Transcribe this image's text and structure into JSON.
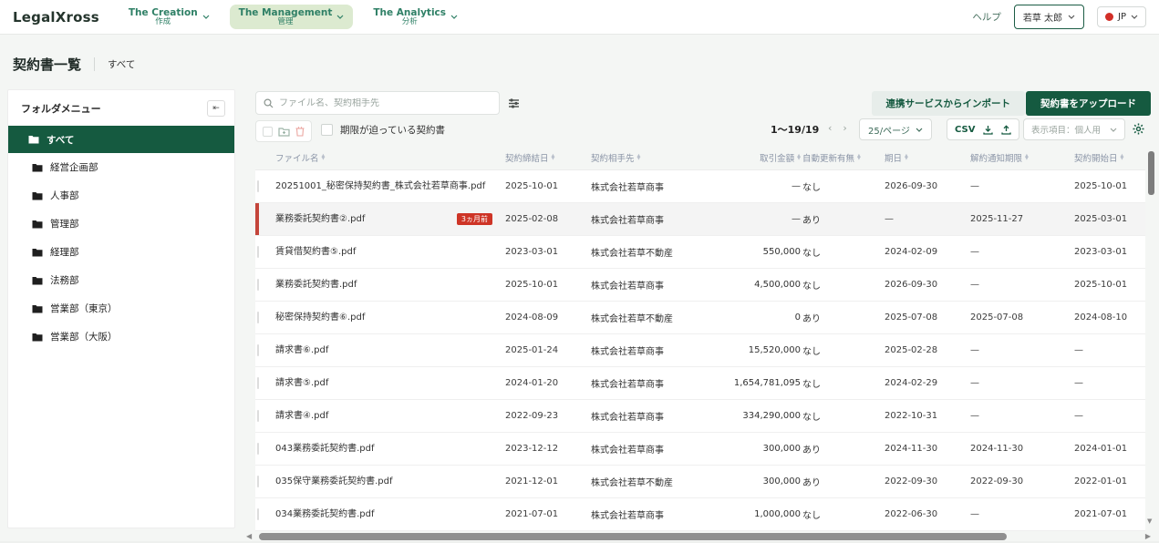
{
  "header": {
    "logo": "LegalXross",
    "nav": [
      {
        "en": "The Creation",
        "ja": "作成",
        "active": false
      },
      {
        "en": "The Management",
        "ja": "管理",
        "active": true
      },
      {
        "en": "The Analytics",
        "ja": "分析",
        "active": false
      }
    ],
    "help": "ヘルプ",
    "user_name": "若草 太郎",
    "lang": "JP"
  },
  "page": {
    "title": "契約書一覧",
    "subtitle": "すべて"
  },
  "sidebar": {
    "title": "フォルダメニュー",
    "items": [
      {
        "label": "すべて",
        "selected": true
      },
      {
        "label": "経営企画部",
        "selected": false
      },
      {
        "label": "人事部",
        "selected": false
      },
      {
        "label": "管理部",
        "selected": false
      },
      {
        "label": "経理部",
        "selected": false
      },
      {
        "label": "法務部",
        "selected": false
      },
      {
        "label": "営業部（東京）",
        "selected": false
      },
      {
        "label": "営業部（大阪）",
        "selected": false
      }
    ]
  },
  "toolbar": {
    "search_placeholder": "ファイル名、契約相手先",
    "deadline_filter_label": "期限が迫っている契約書",
    "import_label": "連携サービスからインポート",
    "upload_label": "契約書をアップロード",
    "range_text": "1〜19/19",
    "per_page": "25/ページ",
    "csv_label": "CSV",
    "display_select": "表示項目：個人用"
  },
  "table": {
    "headers": [
      "ファイル名",
      "契約締結日",
      "契約相手先",
      "取引金額",
      "自動更新有無",
      "期日",
      "解約通知期限",
      "契約開始日"
    ],
    "rows": [
      {
        "file": "20251001_秘密保持契約書_株式会社若草商事.pdf",
        "badge": "",
        "concluded": "2025-10-01",
        "partner": "株式会社若草商事",
        "amount": "—",
        "auto": "なし",
        "due": "2026-09-30",
        "notice": "—",
        "start": "2025-10-01",
        "highlight": false
      },
      {
        "file": "業務委託契約書②.pdf",
        "badge": "3ヵ月前",
        "concluded": "2025-02-08",
        "partner": "株式会社若草商事",
        "amount": "—",
        "auto": "あり",
        "due": "—",
        "notice": "2025-11-27",
        "start": "2025-03-01",
        "highlight": true
      },
      {
        "file": "賃貸借契約書⑤.pdf",
        "badge": "",
        "concluded": "2023-03-01",
        "partner": "株式会社若草不動産",
        "amount": "550,000",
        "auto": "なし",
        "due": "2024-02-09",
        "notice": "—",
        "start": "2023-03-01",
        "highlight": false
      },
      {
        "file": "業務委託契約書.pdf",
        "badge": "",
        "concluded": "2025-10-01",
        "partner": "株式会社若草商事",
        "amount": "4,500,000",
        "auto": "なし",
        "due": "2026-09-30",
        "notice": "—",
        "start": "2025-10-01",
        "highlight": false
      },
      {
        "file": "秘密保持契約書⑥.pdf",
        "badge": "",
        "concluded": "2024-08-09",
        "partner": "株式会社若草不動産",
        "amount": "0",
        "auto": "あり",
        "due": "2025-07-08",
        "notice": "2025-07-08",
        "start": "2024-08-10",
        "highlight": false
      },
      {
        "file": "請求書⑥.pdf",
        "badge": "",
        "concluded": "2025-01-24",
        "partner": "株式会社若草商事",
        "amount": "15,520,000",
        "auto": "なし",
        "due": "2025-02-28",
        "notice": "—",
        "start": "—",
        "highlight": false
      },
      {
        "file": "請求書⑤.pdf",
        "badge": "",
        "concluded": "2024-01-20",
        "partner": "株式会社若草商事",
        "amount": "1,654,781,095",
        "auto": "なし",
        "due": "2024-02-29",
        "notice": "—",
        "start": "—",
        "highlight": false
      },
      {
        "file": "請求書④.pdf",
        "badge": "",
        "concluded": "2022-09-23",
        "partner": "株式会社若草商事",
        "amount": "334,290,000",
        "auto": "なし",
        "due": "2022-10-31",
        "notice": "—",
        "start": "—",
        "highlight": false
      },
      {
        "file": "043業務委託契約書.pdf",
        "badge": "",
        "concluded": "2023-12-12",
        "partner": "株式会社若草商事",
        "amount": "300,000",
        "auto": "あり",
        "due": "2024-11-30",
        "notice": "2024-11-30",
        "start": "2024-01-01",
        "highlight": false
      },
      {
        "file": "035保守業務委託契約書.pdf",
        "badge": "",
        "concluded": "2021-12-01",
        "partner": "株式会社若草不動産",
        "amount": "300,000",
        "auto": "あり",
        "due": "2022-09-30",
        "notice": "2022-09-30",
        "start": "2022-01-01",
        "highlight": false
      },
      {
        "file": "034業務委託契約書.pdf",
        "badge": "",
        "concluded": "2021-07-01",
        "partner": "株式会社若草商事",
        "amount": "1,000,000",
        "auto": "なし",
        "due": "2022-06-30",
        "notice": "—",
        "start": "2021-07-01",
        "highlight": false
      }
    ]
  },
  "colors": {
    "brand_dark_green": "#155a40",
    "nav_green": "#2f8066",
    "nav_active_bg": "#dcead0",
    "badge_red": "#ce3426",
    "highlight_border_red": "#c4453a",
    "flag_red": "#d22f27"
  }
}
